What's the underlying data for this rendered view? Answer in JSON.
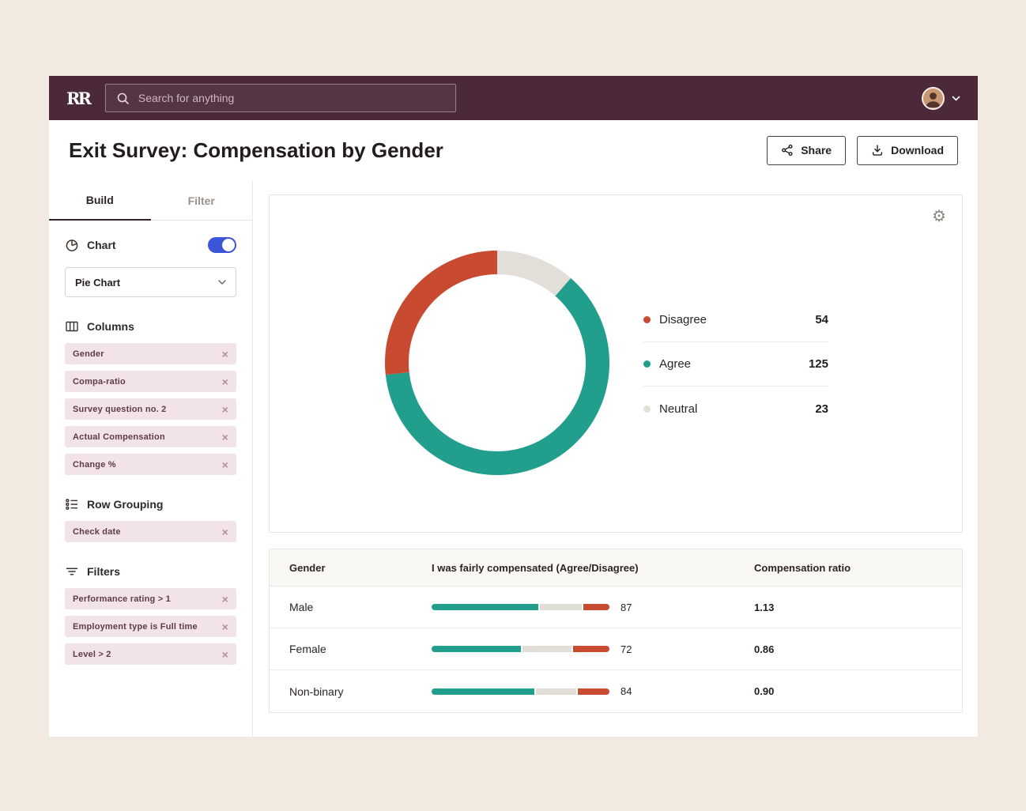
{
  "header": {
    "logo_text": "RR",
    "search_placeholder": "Search for anything"
  },
  "page": {
    "title": "Exit Survey: Compensation by Gender",
    "share_label": "Share",
    "download_label": "Download"
  },
  "sidebar": {
    "tabs": [
      {
        "label": "Build",
        "active": true
      },
      {
        "label": "Filter",
        "active": false
      }
    ],
    "chart_section": {
      "label": "Chart",
      "toggle_on": true,
      "chart_type": "Pie Chart"
    },
    "columns_section": {
      "label": "Columns",
      "pills": [
        "Gender",
        "Compa-ratio",
        "Survey question no. 2",
        "Actual Compensation",
        "Change %"
      ]
    },
    "row_grouping_section": {
      "label": "Row Grouping",
      "pills": [
        "Check date"
      ]
    },
    "filters_section": {
      "label": "Filters",
      "pills": [
        "Performance rating > 1",
        "Employment type is Full time",
        "Level > 2"
      ]
    }
  },
  "chart_data": [
    {
      "type": "pie",
      "donut": true,
      "labels": [
        "Disagree",
        "Agree",
        "Neutral"
      ],
      "values": [
        54,
        125,
        23
      ],
      "colors": [
        "#C74A31",
        "#229E8D",
        "#E2DED8"
      ],
      "draw_order": [
        "Neutral",
        "Agree",
        "Disagree"
      ],
      "legend_position": "right"
    },
    {
      "type": "table",
      "columns": [
        "Gender",
        "I was fairly compensated (Agree/Disagree)",
        "Compensation ratio"
      ],
      "bar_colors": [
        "#229E8D",
        "#E2DED8",
        "#C74A31"
      ],
      "rows": [
        {
          "gender": "Male",
          "score": 87,
          "ratio": "1.13",
          "bar_pct": [
            61,
            24,
            15
          ]
        },
        {
          "gender": "Female",
          "score": 72,
          "ratio": "0.86",
          "bar_pct": [
            51,
            28,
            21
          ]
        },
        {
          "gender": "Non-binary",
          "score": 84,
          "ratio": "0.90",
          "bar_pct": [
            59,
            23,
            18
          ]
        }
      ]
    }
  ],
  "colors": {
    "background": "#F2EAE1",
    "header_bg": "#4B2938",
    "accent_teal": "#229E8D",
    "negative_red": "#C74A31",
    "neutral_gray": "#E2DED8",
    "toggle_blue": "#3C55D9",
    "pill_bg": "#F2E3E7"
  }
}
